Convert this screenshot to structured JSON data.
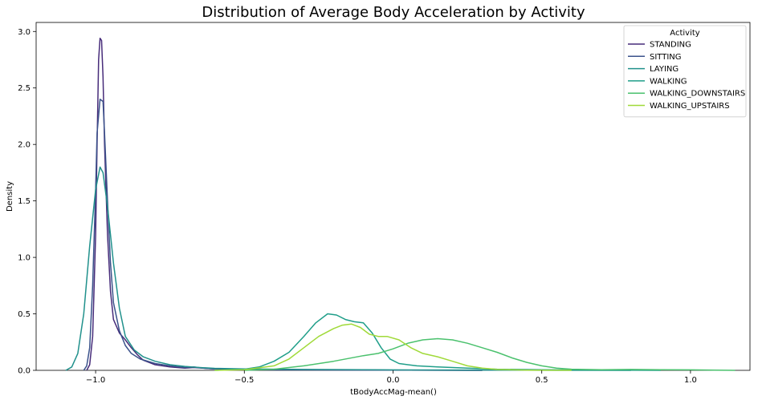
{
  "chart_data": {
    "type": "line",
    "title": "Distribution of Average Body Acceleration by Activity",
    "xlabel": "tBodyAccMag-mean()",
    "ylabel": "Density",
    "xlim": [
      -1.2,
      1.2
    ],
    "ylim": [
      0,
      3.08
    ],
    "x_ticks": [
      -1.0,
      -0.5,
      0.0,
      0.5,
      1.0
    ],
    "x_tick_labels": [
      "−1.0",
      "−0.5",
      "0.0",
      "0.5",
      "1.0"
    ],
    "y_ticks": [
      0,
      0.5,
      1.0,
      1.5,
      2.0,
      2.5,
      3.0
    ],
    "y_tick_labels": [
      "0.0",
      "0.5",
      "1.0",
      "1.5",
      "2.0",
      "2.5",
      "3.0"
    ],
    "grid": false,
    "legend": {
      "title": "Activity",
      "placement": "top-right"
    },
    "series": [
      {
        "name": "STANDING",
        "color": "#472c7a",
        "points": [
          [
            -1.03,
            0
          ],
          [
            -1.02,
            0.05
          ],
          [
            -1.01,
            0.3
          ],
          [
            -1.0,
            1.2
          ],
          [
            -0.995,
            2.0
          ],
          [
            -0.99,
            2.75
          ],
          [
            -0.985,
            2.94
          ],
          [
            -0.98,
            2.92
          ],
          [
            -0.975,
            2.6
          ],
          [
            -0.97,
            2.0
          ],
          [
            -0.96,
            1.2
          ],
          [
            -0.95,
            0.7
          ],
          [
            -0.94,
            0.45
          ],
          [
            -0.92,
            0.33
          ],
          [
            -0.9,
            0.27
          ],
          [
            -0.88,
            0.2
          ],
          [
            -0.86,
            0.14
          ],
          [
            -0.84,
            0.09
          ],
          [
            -0.8,
            0.05
          ],
          [
            -0.75,
            0.03
          ],
          [
            -0.7,
            0.02
          ],
          [
            -0.67,
            0.025
          ],
          [
            -0.64,
            0.02
          ],
          [
            -0.6,
            0.012
          ],
          [
            -0.5,
            0.006
          ],
          [
            -0.3,
            0.004
          ],
          [
            0.0,
            0.002
          ],
          [
            0.3,
            0.0
          ]
        ]
      },
      {
        "name": "SITTING",
        "color": "#3b528b",
        "points": [
          [
            -1.04,
            0
          ],
          [
            -1.03,
            0.04
          ],
          [
            -1.02,
            0.2
          ],
          [
            -1.01,
            0.75
          ],
          [
            -1.0,
            1.6
          ],
          [
            -0.995,
            2.1
          ],
          [
            -0.985,
            2.4
          ],
          [
            -0.975,
            2.38
          ],
          [
            -0.97,
            2.1
          ],
          [
            -0.96,
            1.5
          ],
          [
            -0.95,
            0.95
          ],
          [
            -0.94,
            0.6
          ],
          [
            -0.92,
            0.35
          ],
          [
            -0.9,
            0.22
          ],
          [
            -0.88,
            0.15
          ],
          [
            -0.85,
            0.1
          ],
          [
            -0.8,
            0.06
          ],
          [
            -0.75,
            0.04
          ],
          [
            -0.7,
            0.025
          ],
          [
            -0.67,
            0.03
          ],
          [
            -0.64,
            0.02
          ],
          [
            -0.6,
            0.012
          ],
          [
            -0.5,
            0.006
          ],
          [
            -0.3,
            0.004
          ],
          [
            0.0,
            0.002
          ],
          [
            0.3,
            0.0
          ]
        ]
      },
      {
        "name": "LAYING",
        "color": "#21918c",
        "points": [
          [
            -1.1,
            0
          ],
          [
            -1.08,
            0.03
          ],
          [
            -1.06,
            0.15
          ],
          [
            -1.04,
            0.5
          ],
          [
            -1.02,
            1.1
          ],
          [
            -1.0,
            1.6
          ],
          [
            -0.985,
            1.8
          ],
          [
            -0.975,
            1.75
          ],
          [
            -0.96,
            1.45
          ],
          [
            -0.94,
            0.95
          ],
          [
            -0.92,
            0.55
          ],
          [
            -0.9,
            0.3
          ],
          [
            -0.87,
            0.18
          ],
          [
            -0.84,
            0.12
          ],
          [
            -0.8,
            0.08
          ],
          [
            -0.75,
            0.05
          ],
          [
            -0.7,
            0.035
          ],
          [
            -0.65,
            0.025
          ],
          [
            -0.6,
            0.018
          ],
          [
            -0.5,
            0.012
          ],
          [
            -0.3,
            0.008
          ],
          [
            -0.1,
            0.005
          ],
          [
            0.2,
            0.003
          ],
          [
            0.5,
            0.001
          ],
          [
            0.8,
            0.0
          ]
        ]
      },
      {
        "name": "WALKING",
        "color": "#1f9e89",
        "points": [
          [
            -0.6,
            0
          ],
          [
            -0.5,
            0.01
          ],
          [
            -0.45,
            0.03
          ],
          [
            -0.4,
            0.08
          ],
          [
            -0.35,
            0.16
          ],
          [
            -0.3,
            0.3
          ],
          [
            -0.26,
            0.42
          ],
          [
            -0.22,
            0.5
          ],
          [
            -0.19,
            0.49
          ],
          [
            -0.16,
            0.45
          ],
          [
            -0.13,
            0.43
          ],
          [
            -0.1,
            0.42
          ],
          [
            -0.07,
            0.33
          ],
          [
            -0.04,
            0.2
          ],
          [
            -0.01,
            0.1
          ],
          [
            0.02,
            0.06
          ],
          [
            0.08,
            0.04
          ],
          [
            0.15,
            0.03
          ],
          [
            0.25,
            0.02
          ],
          [
            0.35,
            0.01
          ],
          [
            0.5,
            0.005
          ],
          [
            0.7,
            0.002
          ],
          [
            0.9,
            0.0
          ]
        ]
      },
      {
        "name": "WALKING_DOWNSTAIRS",
        "color": "#4ac16d",
        "points": [
          [
            -0.5,
            0
          ],
          [
            -0.4,
            0.01
          ],
          [
            -0.3,
            0.04
          ],
          [
            -0.2,
            0.08
          ],
          [
            -0.1,
            0.13
          ],
          [
            -0.05,
            0.15
          ],
          [
            0.0,
            0.19
          ],
          [
            0.05,
            0.24
          ],
          [
            0.1,
            0.27
          ],
          [
            0.15,
            0.28
          ],
          [
            0.2,
            0.27
          ],
          [
            0.25,
            0.24
          ],
          [
            0.3,
            0.2
          ],
          [
            0.35,
            0.16
          ],
          [
            0.4,
            0.11
          ],
          [
            0.45,
            0.07
          ],
          [
            0.5,
            0.04
          ],
          [
            0.55,
            0.02
          ],
          [
            0.6,
            0.01
          ],
          [
            0.7,
            0.006
          ],
          [
            0.8,
            0.008
          ],
          [
            0.9,
            0.006
          ],
          [
            1.0,
            0.004
          ],
          [
            1.15,
            0.0
          ]
        ]
      },
      {
        "name": "WALKING_UPSTAIRS",
        "color": "#a0da39",
        "points": [
          [
            -0.6,
            0
          ],
          [
            -0.5,
            0.005
          ],
          [
            -0.4,
            0.04
          ],
          [
            -0.35,
            0.1
          ],
          [
            -0.3,
            0.2
          ],
          [
            -0.25,
            0.3
          ],
          [
            -0.2,
            0.37
          ],
          [
            -0.17,
            0.4
          ],
          [
            -0.14,
            0.41
          ],
          [
            -0.11,
            0.38
          ],
          [
            -0.08,
            0.32
          ],
          [
            -0.05,
            0.3
          ],
          [
            -0.02,
            0.3
          ],
          [
            0.02,
            0.27
          ],
          [
            0.06,
            0.2
          ],
          [
            0.1,
            0.15
          ],
          [
            0.15,
            0.12
          ],
          [
            0.2,
            0.08
          ],
          [
            0.25,
            0.04
          ],
          [
            0.3,
            0.02
          ],
          [
            0.35,
            0.008
          ],
          [
            0.45,
            0.002
          ],
          [
            0.6,
            0.0
          ]
        ]
      }
    ]
  }
}
